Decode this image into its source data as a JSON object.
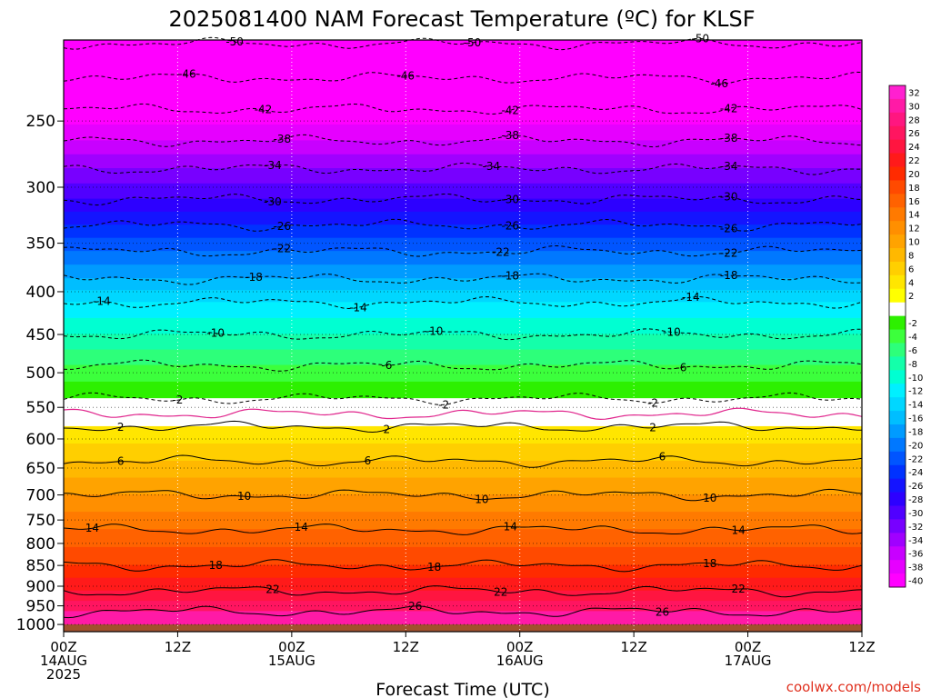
{
  "title": "2025081400 NAM Forecast Temperature (ºC) for KLSF",
  "credit": "coolwx.com/models",
  "chart_data": {
    "type": "heatmap",
    "title": "2025081400 NAM Forecast Temperature (ºC) for KLSF",
    "xlabel": "Forecast Time (UTC)",
    "ylabel": "",
    "x_range_hours": [
      0,
      84
    ],
    "x_ticks": [
      {
        "hour": 0,
        "lines": [
          "00Z",
          "14AUG",
          "2025"
        ]
      },
      {
        "hour": 12,
        "lines": [
          "12Z"
        ]
      },
      {
        "hour": 24,
        "lines": [
          "00Z",
          "15AUG"
        ]
      },
      {
        "hour": 36,
        "lines": [
          "12Z"
        ]
      },
      {
        "hour": 48,
        "lines": [
          "00Z",
          "16AUG"
        ]
      },
      {
        "hour": 60,
        "lines": [
          "12Z"
        ]
      },
      {
        "hour": 72,
        "lines": [
          "00Z",
          "17AUG"
        ]
      },
      {
        "hour": 84,
        "lines": [
          "12Z"
        ]
      }
    ],
    "y_axis": {
      "scale": "log",
      "reversed": true,
      "range_hpa": [
        1020,
        200
      ]
    },
    "y_ticks": [
      250,
      300,
      350,
      400,
      450,
      500,
      550,
      600,
      650,
      700,
      750,
      800,
      850,
      900,
      950,
      1000
    ],
    "grid": {
      "vertical_dotted": true,
      "horizontal_dotted": true
    },
    "ground_surface_hpa": 1000,
    "colorbar": {
      "labels": [
        "32",
        "30",
        "28",
        "26",
        "24",
        "22",
        "20",
        "18",
        "16",
        "14",
        "12",
        "10",
        "8",
        "6",
        "4",
        "2",
        "",
        "-2",
        "-4",
        "-6",
        "-8",
        "-10",
        "-12",
        "-14",
        "-16",
        "-18",
        "-20",
        "-22",
        "-24",
        "-26",
        "-28",
        "-30",
        "-32",
        "-34",
        "-36",
        "-38",
        "-40"
      ],
      "colors": [
        "#ff20d0",
        "#ff1aa6",
        "#ff1680",
        "#ff1560",
        "#ff1540",
        "#ff1a1a",
        "#ff2b00",
        "#ff4a00",
        "#ff6200",
        "#ff7a00",
        "#ff8f00",
        "#ffa300",
        "#ffb800",
        "#ffcf00",
        "#ffe600",
        "#ffff00",
        "#ffffff",
        "#2df000",
        "#3cff3c",
        "#2dff7a",
        "#14ffaa",
        "#00ffd2",
        "#00f0ff",
        "#00d7ff",
        "#00beff",
        "#009bff",
        "#0078ff",
        "#0055ff",
        "#0032ff",
        "#1414ff",
        "#2d00ff",
        "#5000ff",
        "#7800ff",
        "#a000ff",
        "#c800ff",
        "#e600ff",
        "#ff00ff"
      ]
    },
    "contour_levels": [
      {
        "value": -50,
        "hpa": 202,
        "dashed": true,
        "labels": [
          {
            "hour": 18,
            "text": "-50"
          },
          {
            "hour": 43,
            "text": "-50"
          },
          {
            "hour": 67,
            "text": "-50"
          }
        ]
      },
      {
        "value": -46,
        "hpa": 222,
        "dashed": true,
        "labels": [
          {
            "hour": 13,
            "text": "-46"
          },
          {
            "hour": 36,
            "text": "-46"
          },
          {
            "hour": 69,
            "text": "-46"
          }
        ]
      },
      {
        "value": -42,
        "hpa": 242,
        "dashed": true,
        "labels": [
          {
            "hour": 21,
            "text": "-42"
          },
          {
            "hour": 47,
            "text": "-42"
          },
          {
            "hour": 70,
            "text": "-42"
          }
        ]
      },
      {
        "value": -38,
        "hpa": 264,
        "dashed": true,
        "labels": [
          {
            "hour": 23,
            "text": "-38"
          },
          {
            "hour": 47,
            "text": "-38"
          },
          {
            "hour": 70,
            "text": "-38"
          }
        ]
      },
      {
        "value": -34,
        "hpa": 285,
        "dashed": true,
        "labels": [
          {
            "hour": 22,
            "text": "-34"
          },
          {
            "hour": 45,
            "text": "-34"
          },
          {
            "hour": 70,
            "text": "-34"
          }
        ]
      },
      {
        "value": -30,
        "hpa": 310,
        "dashed": true,
        "labels": [
          {
            "hour": 22,
            "text": "-30"
          },
          {
            "hour": 47,
            "text": "-30"
          },
          {
            "hour": 70,
            "text": "-30"
          }
        ]
      },
      {
        "value": -26,
        "hpa": 333,
        "dashed": true,
        "labels": [
          {
            "hour": 23,
            "text": "-26"
          },
          {
            "hour": 47,
            "text": "-26"
          },
          {
            "hour": 70,
            "text": "-26"
          }
        ]
      },
      {
        "value": -22,
        "hpa": 358,
        "dashed": true,
        "labels": [
          {
            "hour": 23,
            "text": "-22"
          },
          {
            "hour": 46,
            "text": "-22"
          },
          {
            "hour": 70,
            "text": "-22"
          }
        ]
      },
      {
        "value": -18,
        "hpa": 386,
        "dashed": true,
        "labels": [
          {
            "hour": 20,
            "text": "-18"
          },
          {
            "hour": 47,
            "text": "-18"
          },
          {
            "hour": 70,
            "text": "-18"
          }
        ]
      },
      {
        "value": -14,
        "hpa": 412,
        "dashed": true,
        "labels": [
          {
            "hour": 4,
            "text": "-14"
          },
          {
            "hour": 31,
            "text": "-14"
          },
          {
            "hour": 66,
            "text": "-14"
          }
        ]
      },
      {
        "value": -10,
        "hpa": 450,
        "dashed": true,
        "labels": [
          {
            "hour": 16,
            "text": "-10"
          },
          {
            "hour": 39,
            "text": "-10"
          },
          {
            "hour": 64,
            "text": "-10"
          }
        ]
      },
      {
        "value": -6,
        "hpa": 490,
        "dashed": true,
        "labels": [
          {
            "hour": 34,
            "text": "-6"
          },
          {
            "hour": 65,
            "text": "-6"
          }
        ]
      },
      {
        "value": -2,
        "hpa": 537,
        "dashed": true,
        "labels": [
          {
            "hour": 12,
            "text": "-2"
          },
          {
            "hour": 40,
            "text": "-2"
          },
          {
            "hour": 62,
            "text": "-2"
          }
        ]
      },
      {
        "value": 0,
        "hpa": 560,
        "dashed": false,
        "color": "#e0248c",
        "labels": []
      },
      {
        "value": 2,
        "hpa": 580,
        "dashed": false,
        "labels": [
          {
            "hour": 6,
            "text": "2"
          },
          {
            "hour": 34,
            "text": "2"
          },
          {
            "hour": 62,
            "text": "2"
          }
        ]
      },
      {
        "value": 6,
        "hpa": 638,
        "dashed": false,
        "labels": [
          {
            "hour": 6,
            "text": "6"
          },
          {
            "hour": 32,
            "text": "6"
          },
          {
            "hour": 63,
            "text": "6"
          }
        ]
      },
      {
        "value": 10,
        "hpa": 700,
        "dashed": false,
        "labels": [
          {
            "hour": 19,
            "text": "10"
          },
          {
            "hour": 44,
            "text": "10"
          },
          {
            "hour": 68,
            "text": "10"
          }
        ]
      },
      {
        "value": 14,
        "hpa": 770,
        "dashed": false,
        "labels": [
          {
            "hour": 3,
            "text": "14"
          },
          {
            "hour": 25,
            "text": "14"
          },
          {
            "hour": 47,
            "text": "14"
          },
          {
            "hour": 71,
            "text": "14"
          }
        ]
      },
      {
        "value": 18,
        "hpa": 850,
        "dashed": false,
        "labels": [
          {
            "hour": 16,
            "text": "18"
          },
          {
            "hour": 39,
            "text": "18"
          },
          {
            "hour": 68,
            "text": "18"
          }
        ]
      },
      {
        "value": 22,
        "hpa": 912,
        "dashed": false,
        "labels": [
          {
            "hour": 22,
            "text": "22"
          },
          {
            "hour": 46,
            "text": "22"
          },
          {
            "hour": 71,
            "text": "22"
          }
        ]
      },
      {
        "value": 26,
        "hpa": 965,
        "dashed": false,
        "labels": [
          {
            "hour": 37,
            "text": "26"
          },
          {
            "hour": 63,
            "text": "26"
          }
        ]
      }
    ]
  }
}
